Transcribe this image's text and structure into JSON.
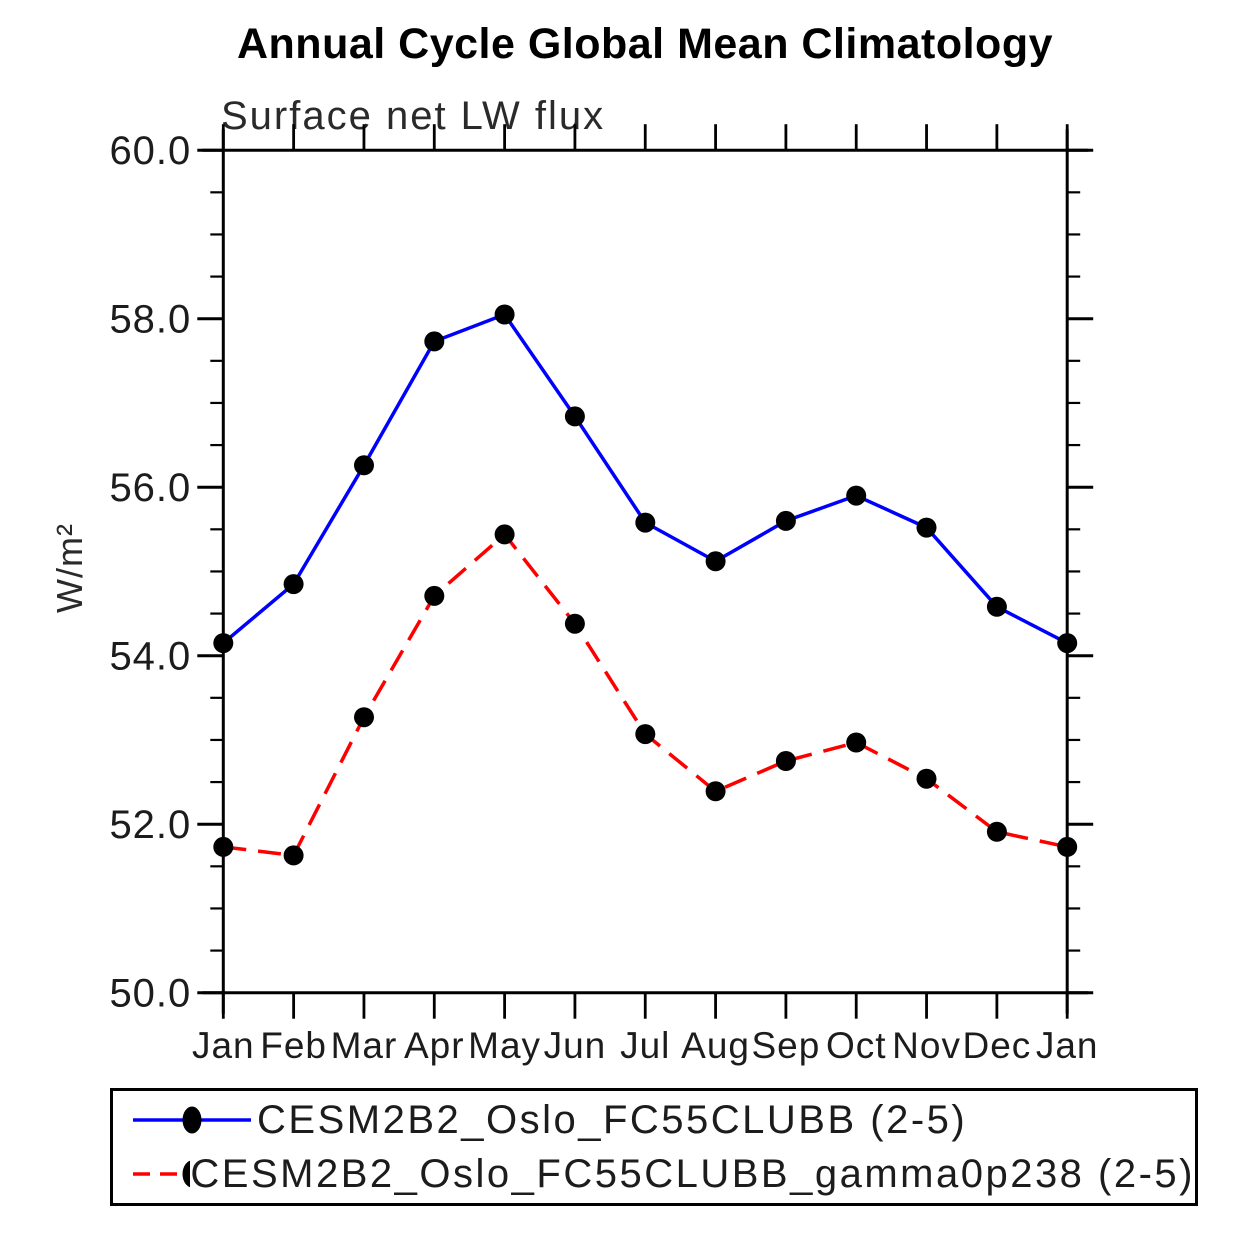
{
  "chart_data": {
    "type": "line",
    "title": "Annual Cycle Global Mean Climatology",
    "subtitle": "Surface net LW flux",
    "ylabel": "W/m²",
    "xlabel": "",
    "x_categories": [
      "Jan",
      "Feb",
      "Mar",
      "Apr",
      "May",
      "Jun",
      "Jul",
      "Aug",
      "Sep",
      "Oct",
      "Nov",
      "Dec",
      "Jan"
    ],
    "ylim": [
      50.0,
      60.0
    ],
    "y_major_tick_step": 2.0,
    "y_minor_tick_step": 0.5,
    "y_tick_labels": [
      "50.0",
      "52.0",
      "54.0",
      "56.0",
      "58.0",
      "60.0"
    ],
    "grid": "off",
    "legend_position": "bottom-left-box",
    "axis_color": "#000000",
    "tick_label_color": "#1c1c1c",
    "marker_color": "#000000",
    "series": [
      {
        "name": "CESM2B2_Oslo_FC55CLUBB (2-5)",
        "color": "#0000ff",
        "style": "solid",
        "marker": "filled-circle",
        "values": [
          54.15,
          54.85,
          56.26,
          57.73,
          58.05,
          56.84,
          55.58,
          55.12,
          55.6,
          55.9,
          55.52,
          54.58,
          54.15
        ]
      },
      {
        "name": "CESM2B2_Oslo_FC55CLUBB_gamma0p238 (2-5)",
        "color": "#ff0000",
        "style": "dashed",
        "marker": "filled-circle",
        "values": [
          51.73,
          51.63,
          53.27,
          54.71,
          55.44,
          54.38,
          53.07,
          52.39,
          52.75,
          52.97,
          52.54,
          51.91,
          51.73
        ]
      }
    ]
  }
}
